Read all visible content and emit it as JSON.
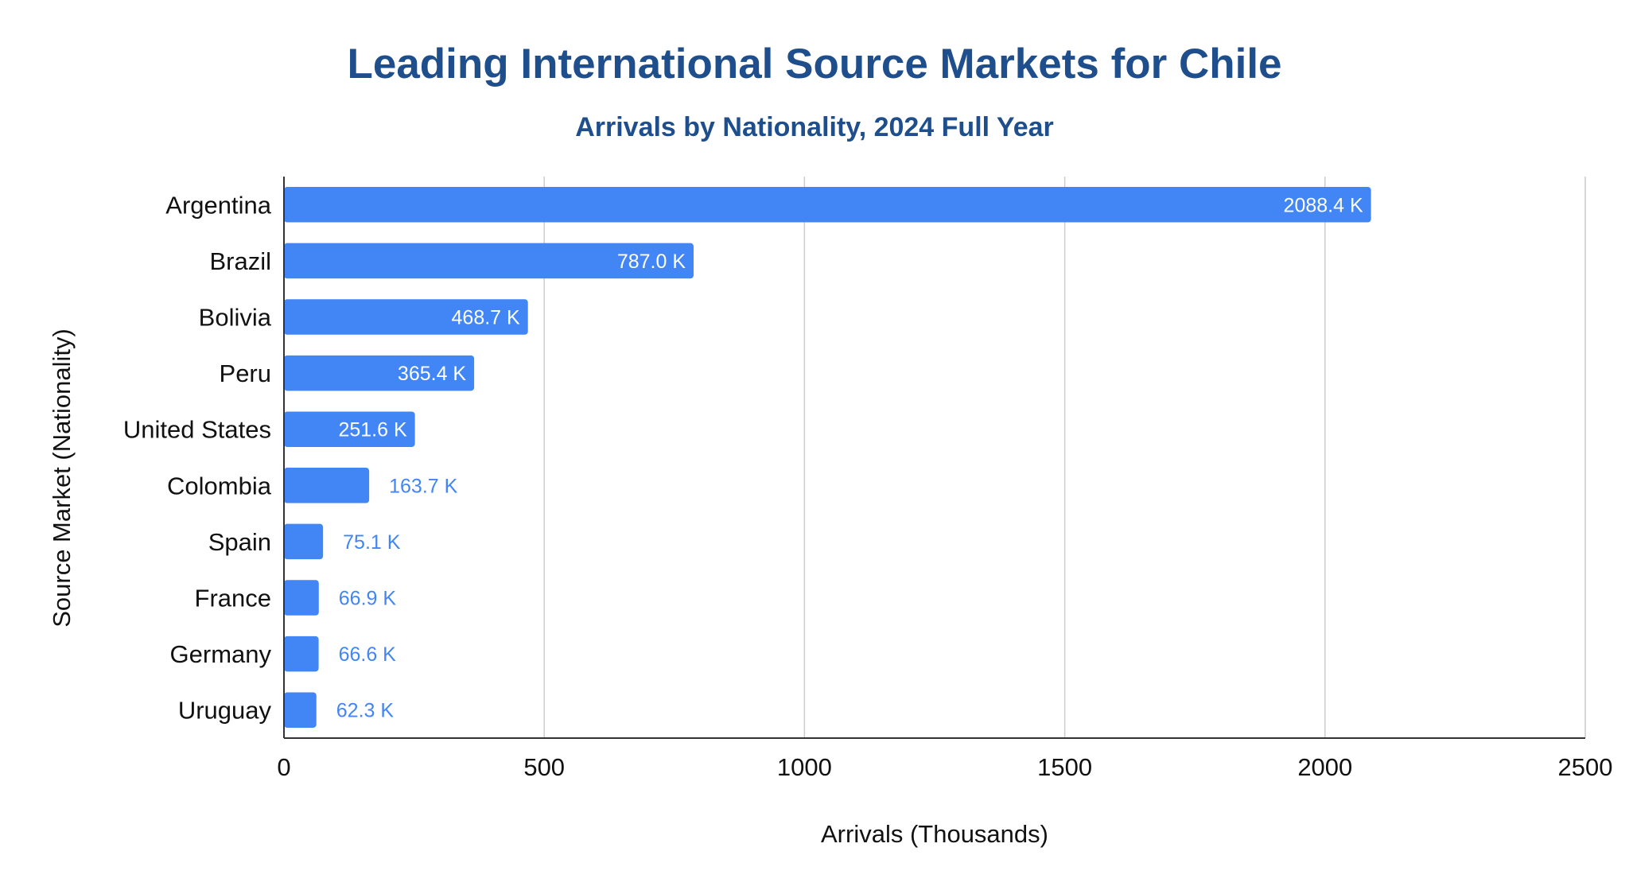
{
  "chart_data": {
    "type": "bar",
    "orientation": "horizontal",
    "title": "Leading International Source Markets for Chile",
    "subtitle": "Arrivals by Nationality, 2024 Full Year",
    "xlabel": "Arrivals (Thousands)",
    "ylabel": "Source Market (Nationality)",
    "categories": [
      "Argentina",
      "Brazil",
      "Bolivia",
      "Peru",
      "United States",
      "Colombia",
      "Spain",
      "France",
      "Germany",
      "Uruguay"
    ],
    "values": [
      2088.4,
      787.0,
      468.7,
      365.4,
      251.6,
      163.7,
      75.1,
      66.9,
      66.6,
      62.3
    ],
    "data_labels": [
      "2088.4 K",
      "787.0 K",
      "468.7 K",
      "365.4 K",
      "251.6 K",
      "163.7 K",
      "75.1 K",
      "66.9 K",
      "66.6 K",
      "62.3 K"
    ],
    "xlim": [
      0,
      2500
    ],
    "xticks": [
      0,
      500,
      1000,
      1500,
      2000,
      2500
    ],
    "xtick_labels": [
      "0",
      "500",
      "1000",
      "1500",
      "2000",
      "2500"
    ],
    "grid": "vertical",
    "legend": "none",
    "bar_color": "#4285f4",
    "label_inside_color": "#ffffff",
    "label_outside_color": "#4285f4",
    "gridline_color": "#cccccc",
    "title_color": "#1f4e8c"
  }
}
